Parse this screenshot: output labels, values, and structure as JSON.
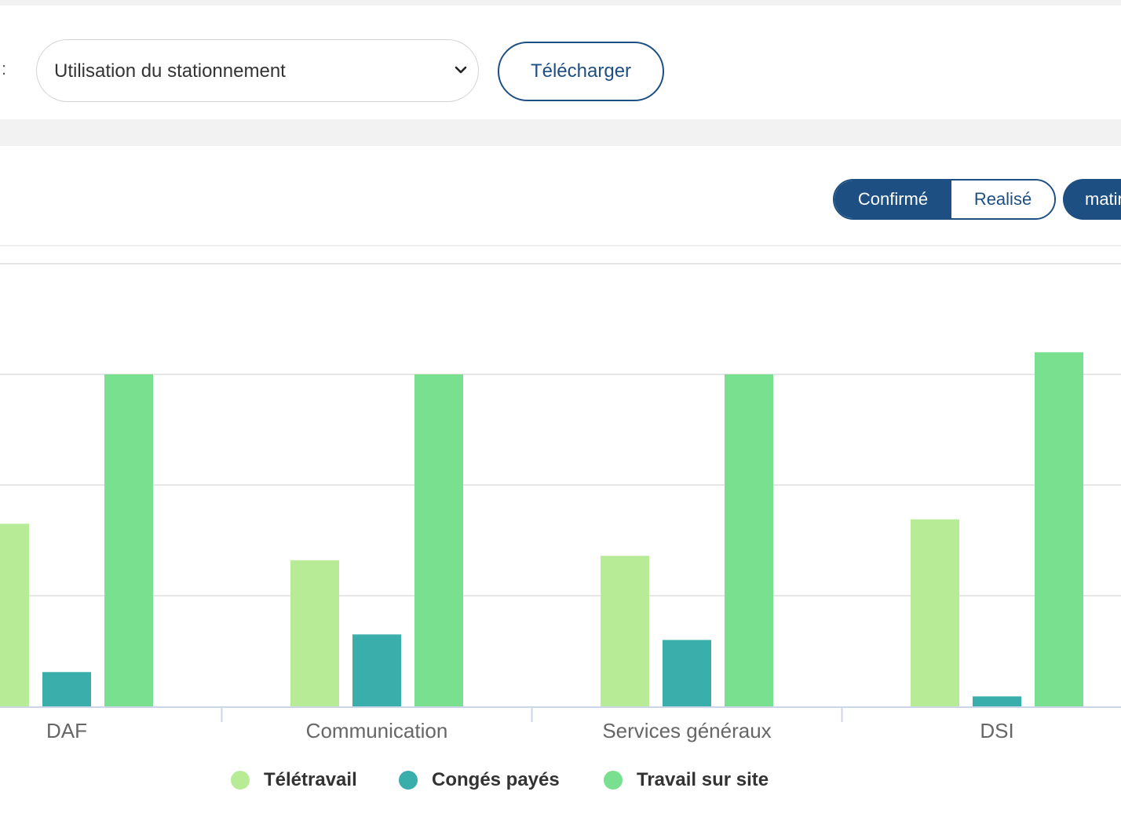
{
  "toolbar": {
    "colon": ":",
    "report_select": {
      "value": "Utilisation du stationnement",
      "icon": "chevron-down-icon"
    },
    "download_label": "Télécharger"
  },
  "filters": {
    "confirmed_label": "Confirmé",
    "realized_label": "Realisé",
    "period_label": "matin"
  },
  "colors": {
    "primary": "#1d4f82",
    "teletravail": "#b8eb96",
    "conges": "#3aaeaa",
    "site": "#78e08e"
  },
  "chart_data": {
    "type": "bar",
    "categories": [
      "DAF",
      "Communication",
      "Services généraux",
      "DSI"
    ],
    "series": [
      {
        "name": "Télétravail",
        "color": "#b8eb96",
        "values": [
          16.5,
          13.2,
          13.6,
          16.9
        ]
      },
      {
        "name": "Congés payés",
        "color": "#3aaeaa",
        "values": [
          3.1,
          6.5,
          6.0,
          0.9
        ]
      },
      {
        "name": "Travail sur site",
        "color": "#78e08e",
        "values": [
          30,
          30,
          30,
          32
        ]
      }
    ],
    "ylim": [
      0,
      40
    ],
    "grid": true,
    "legend_position": "bottom-center"
  }
}
